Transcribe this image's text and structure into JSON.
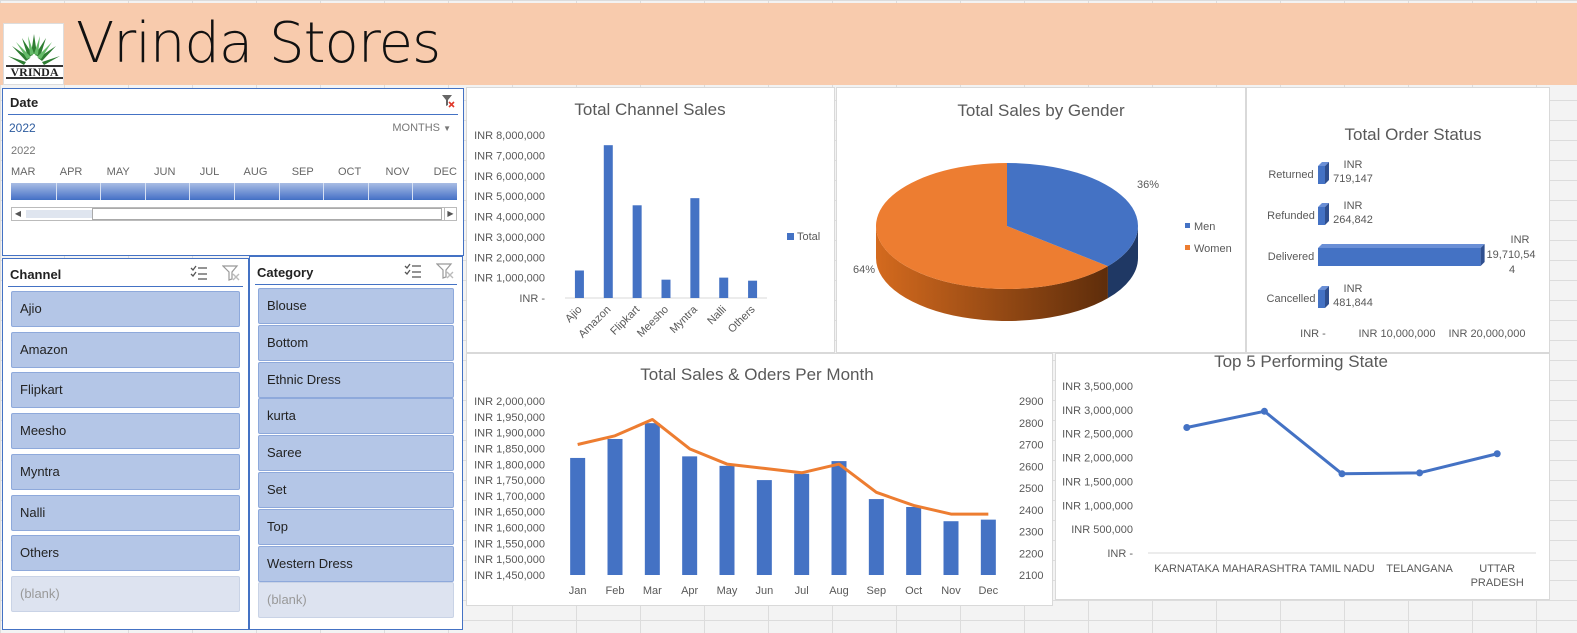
{
  "header": {
    "title": "Vrinda Stores",
    "logo_text": "VRINDA"
  },
  "timeline": {
    "header": "Date",
    "year_label": "2022",
    "level": "MONTHS",
    "year_row": "2022",
    "months": [
      "MAR",
      "APR",
      "MAY",
      "JUN",
      "JUL",
      "AUG",
      "SEP",
      "OCT",
      "NOV",
      "DEC"
    ]
  },
  "channel_slicer": {
    "header": "Channel",
    "items": [
      "Ajio",
      "Amazon",
      "Flipkart",
      "Meesho",
      "Myntra",
      "Nalli",
      "Others",
      "(blank)"
    ]
  },
  "category_slicer": {
    "header": "Category",
    "items": [
      "Blouse",
      "Bottom",
      "Ethnic Dress",
      "kurta",
      "Saree",
      "Set",
      "Top",
      "Western Dress",
      "(blank)"
    ]
  },
  "colors": {
    "blue": "#4472c4",
    "orange": "#ed7d31",
    "header_bg": "#f8cbad",
    "dark_navy": "#1f3864"
  },
  "chart_data": [
    {
      "id": "channel",
      "type": "bar",
      "title": "Total Channel Sales",
      "categories": [
        "Ajio",
        "Amazon",
        "Flipkart",
        "Meesho",
        "Myntra",
        "Nalli",
        "Others"
      ],
      "series": [
        {
          "name": "Total",
          "values": [
            1350000,
            7500000,
            4550000,
            900000,
            4900000,
            1000000,
            850000
          ]
        }
      ],
      "ylim": [
        0,
        8000000
      ],
      "yticks": [
        0,
        1000000,
        2000000,
        3000000,
        4000000,
        5000000,
        6000000,
        7000000,
        8000000
      ],
      "ytick_labels": [
        "INR -",
        "INR 1,000,000",
        "INR 2,000,000",
        "INR 3,000,000",
        "INR 4,000,000",
        "INR 5,000,000",
        "INR 6,000,000",
        "INR 7,000,000",
        "INR 8,000,000"
      ],
      "legend": "right"
    },
    {
      "id": "gender",
      "type": "pie",
      "title": "Total Sales by Gender",
      "labels": [
        "Men",
        "Women"
      ],
      "values": [
        36,
        64
      ],
      "value_labels": [
        "36%",
        "64%"
      ],
      "legend": "right"
    },
    {
      "id": "status",
      "type": "bar",
      "orientation": "horizontal",
      "title": "Total Order Status",
      "categories": [
        "Returned",
        "Refunded",
        "Delivered",
        "Cancelled"
      ],
      "values": [
        719147,
        264842,
        19710544,
        481844
      ],
      "data_labels": [
        "INR 719,147",
        "INR 264,842",
        "INR 19,710,544",
        "INR 481,844"
      ],
      "xlim": [
        0,
        20000000
      ],
      "xtick_labels": [
        "INR -",
        "INR 10,000,000",
        "INR 20,000,000"
      ]
    },
    {
      "id": "monthly",
      "type": "bar",
      "title": "Total Sales & Oders Per Month",
      "categories": [
        "Jan",
        "Feb",
        "Mar",
        "Apr",
        "May",
        "Jun",
        "Jul",
        "Aug",
        "Sep",
        "Oct",
        "Nov",
        "Dec"
      ],
      "series": [
        {
          "values": [
            1820000,
            1880000,
            1930000,
            1825000,
            1795000,
            1750000,
            1770000,
            1810000,
            1690000,
            1665000,
            1620000,
            1625000
          ],
          "chart": "bar"
        },
        {
          "values": [
            2700,
            2740,
            2815,
            2680,
            2610,
            2590,
            2570,
            2610,
            2480,
            2420,
            2380,
            2380
          ],
          "chart": "line",
          "axis": "secondary"
        }
      ],
      "ylim": [
        1450000,
        2000000
      ],
      "ytick_labels": [
        "INR 1,450,000",
        "INR 1,500,000",
        "INR 1,550,000",
        "INR 1,600,000",
        "INR 1,650,000",
        "INR 1,700,000",
        "INR 1,750,000",
        "INR 1,800,000",
        "INR 1,850,000",
        "INR 1,900,000",
        "INR 1,950,000",
        "INR 2,000,000"
      ],
      "y2lim": [
        2100,
        2900
      ],
      "y2tick_labels": [
        "2100",
        "2200",
        "2300",
        "2400",
        "2500",
        "2600",
        "2700",
        "2800",
        "2900"
      ]
    },
    {
      "id": "states",
      "type": "line",
      "title": "Top 5 Performing State",
      "categories": [
        "KARNATAKA",
        "MAHARASHTRA",
        "TAMIL NADU",
        "TELANGANA",
        "UTTAR PRADESH"
      ],
      "category_labels": [
        [
          "KARNATAKA"
        ],
        [
          "MAHARASHTRA"
        ],
        [
          "TAMIL NADU"
        ],
        [
          "TELANGANA"
        ],
        [
          "UTTAR",
          "PRADESH"
        ]
      ],
      "values": [
        2630000,
        2970000,
        1660000,
        1680000,
        2080000
      ],
      "ylim": [
        0,
        3500000
      ],
      "ytick_labels": [
        "INR -",
        "INR 500,000",
        "INR 1,000,000",
        "INR 1,500,000",
        "INR 2,000,000",
        "INR 2,500,000",
        "INR 3,000,000",
        "INR 3,500,000"
      ]
    }
  ]
}
